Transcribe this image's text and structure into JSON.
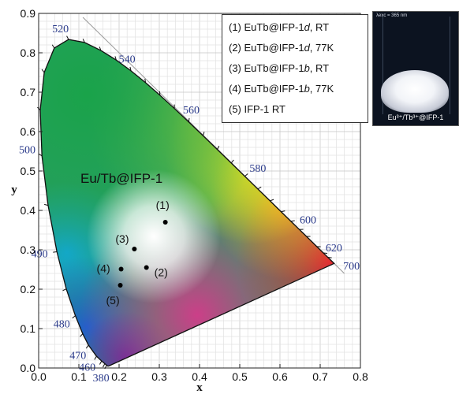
{
  "chart_data": {
    "type": "scatter",
    "title": "",
    "xlabel": "x",
    "ylabel": "y",
    "xlim": [
      0.0,
      0.8
    ],
    "ylim": [
      0.0,
      0.9
    ],
    "x_ticks": [
      "0.0",
      "0.1",
      "0.2",
      "0.3",
      "0.4",
      "0.5",
      "0.6",
      "0.7",
      "0.8"
    ],
    "y_ticks": [
      "0.0",
      "0.1",
      "0.2",
      "0.3",
      "0.4",
      "0.5",
      "0.6",
      "0.7",
      "0.8",
      "0.9"
    ],
    "grid": true,
    "annotation": "Eu/Tb@IFP-1",
    "wavelength_labels": [
      {
        "text": "380",
        "x": 0.174,
        "y": 0.005
      },
      {
        "text": "460",
        "x": 0.144,
        "y": 0.03
      },
      {
        "text": "470",
        "x": 0.124,
        "y": 0.058
      },
      {
        "text": "480",
        "x": 0.091,
        "y": 0.133
      },
      {
        "text": "490",
        "x": 0.045,
        "y": 0.295
      },
      {
        "text": "500",
        "x": 0.008,
        "y": 0.538
      },
      {
        "text": "520",
        "x": 0.074,
        "y": 0.834
      },
      {
        "text": "540",
        "x": 0.23,
        "y": 0.754
      },
      {
        "text": "560",
        "x": 0.373,
        "y": 0.624
      },
      {
        "text": "580",
        "x": 0.512,
        "y": 0.487
      },
      {
        "text": "600",
        "x": 0.627,
        "y": 0.373
      },
      {
        "text": "620",
        "x": 0.691,
        "y": 0.308
      },
      {
        "text": "700",
        "x": 0.735,
        "y": 0.265
      }
    ],
    "series": [
      {
        "name": "(1) EuTb@IFP-1d, RT",
        "label": "(1)",
        "x": 0.315,
        "y": 0.37
      },
      {
        "name": "(2) EuTb@IFP-1d, 77K",
        "label": "(2)",
        "x": 0.268,
        "y": 0.255
      },
      {
        "name": "(3) EuTb@IFP-1b, RT",
        "label": "(3)",
        "x": 0.238,
        "y": 0.302
      },
      {
        "name": "(4) EuTb@IFP-1b, 77K",
        "label": "(4)",
        "x": 0.205,
        "y": 0.251
      },
      {
        "name": "(5) IFP-1 RT",
        "label": "(5)",
        "x": 0.203,
        "y": 0.21
      }
    ],
    "legend_position": "top-right"
  },
  "legend": {
    "items": [
      {
        "num": "(1) EuTb@IFP-1",
        "italic": "d",
        "rest": ", RT"
      },
      {
        "num": "(2) EuTb@IFP-1",
        "italic": "d",
        "rest": ", 77K"
      },
      {
        "num": "(3) EuTb@IFP-1",
        "italic": "b",
        "rest": ", RT"
      },
      {
        "num": "(4) EuTb@IFP-1",
        "italic": "b",
        "rest": ", 77K"
      },
      {
        "num": "(5) IFP-1 RT",
        "italic": "",
        "rest": ""
      }
    ]
  },
  "inset": {
    "top_text": "λexc = 365 nm",
    "caption": "Eu³⁺/Tb³⁺@IFP-1"
  }
}
